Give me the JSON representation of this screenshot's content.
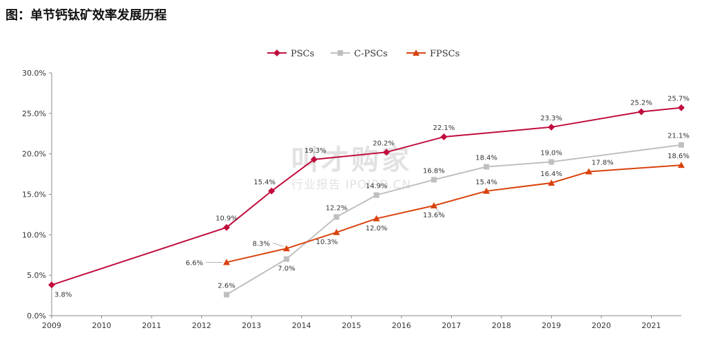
{
  "figure": {
    "title": "图：单节钙钛矿效率发展历程",
    "watermark_main": "叫才购家",
    "watermark_sub": "行业报告 IPOIPO.CN"
  },
  "chart_data": {
    "type": "line",
    "xlabel": "",
    "ylabel": "",
    "xlim": [
      2009,
      2021.6
    ],
    "ylim": [
      0,
      30
    ],
    "x_ticks": [
      2009,
      2010,
      2011,
      2012,
      2013,
      2014,
      2015,
      2016,
      2017,
      2018,
      2019,
      2020,
      2021
    ],
    "y_ticks": [
      "0.0%",
      "5.0%",
      "10.0%",
      "15.0%",
      "20.0%",
      "25.0%",
      "30.0%"
    ],
    "legend_position": "top-center",
    "grid": false,
    "series": [
      {
        "name": "PSCs",
        "color": "#c00d3d",
        "marker": "diamond",
        "points": [
          {
            "x": 2009.0,
            "y": 3.8,
            "label": "3.8%"
          },
          {
            "x": 2012.5,
            "y": 10.9,
            "label": "10.9%"
          },
          {
            "x": 2013.4,
            "y": 15.4,
            "label": "15.4%"
          },
          {
            "x": 2014.25,
            "y": 19.3,
            "label": "19.3%"
          },
          {
            "x": 2015.7,
            "y": 20.2,
            "label": "20.2%"
          },
          {
            "x": 2016.85,
            "y": 22.1,
            "label": "22.1%"
          },
          {
            "x": 2019.0,
            "y": 23.3,
            "label": "23.3%"
          },
          {
            "x": 2020.8,
            "y": 25.2,
            "label": "25.2%"
          },
          {
            "x": 2021.6,
            "y": 25.7,
            "label": "25.7%"
          }
        ]
      },
      {
        "name": "C-PSCs",
        "color": "#bfbfbf",
        "marker": "square",
        "points": [
          {
            "x": 2012.5,
            "y": 2.6,
            "label": "2.6%"
          },
          {
            "x": 2013.7,
            "y": 7.0,
            "label": "7.0%"
          },
          {
            "x": 2014.7,
            "y": 12.2,
            "label": "12.2%"
          },
          {
            "x": 2015.5,
            "y": 14.9,
            "label": "14.9%"
          },
          {
            "x": 2016.65,
            "y": 16.8,
            "label": "16.8%"
          },
          {
            "x": 2017.7,
            "y": 18.4,
            "label": "18.4%"
          },
          {
            "x": 2019.0,
            "y": 19.0,
            "label": "19.0%"
          },
          {
            "x": 2021.6,
            "y": 21.1,
            "label": "21.1%"
          }
        ]
      },
      {
        "name": "FPSCs",
        "color": "#d9420c",
        "marker": "triangle",
        "points": [
          {
            "x": 2012.5,
            "y": 6.6,
            "label": "6.6%"
          },
          {
            "x": 2013.7,
            "y": 8.3,
            "label": "8.3%"
          },
          {
            "x": 2014.7,
            "y": 10.3,
            "label": "10.3%"
          },
          {
            "x": 2015.5,
            "y": 12.0,
            "label": "12.0%"
          },
          {
            "x": 2016.65,
            "y": 13.6,
            "label": "13.6%"
          },
          {
            "x": 2017.7,
            "y": 15.4,
            "label": "15.4%"
          },
          {
            "x": 2019.0,
            "y": 16.4,
            "label": "16.4%"
          },
          {
            "x": 2019.75,
            "y": 17.8,
            "label": "17.8%"
          },
          {
            "x": 2021.6,
            "y": 18.6,
            "label": "18.6%"
          }
        ]
      }
    ]
  }
}
